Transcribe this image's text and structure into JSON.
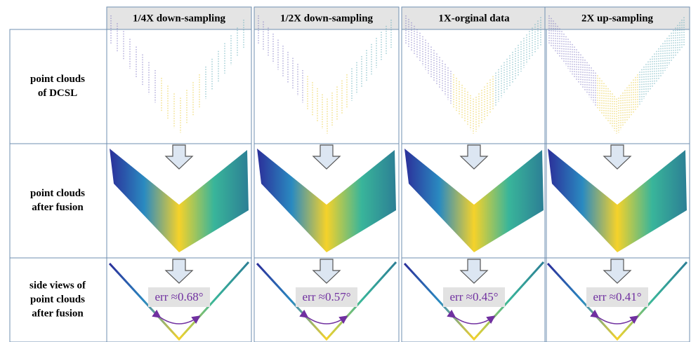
{
  "columns": [
    "1/4X down-sampling",
    "1/2X down-sampling",
    "1X-orginal data",
    "2X up-sampling"
  ],
  "rows": [
    {
      "label": [
        "point clouds",
        "of DCSL"
      ]
    },
    {
      "label": [
        "point clouds",
        "after fusion"
      ]
    },
    {
      "label": [
        "side views of",
        "point clouds",
        "after fusion"
      ],
      "errors": [
        "err ≈0.68°",
        "err ≈0.57°",
        "err ≈0.45°",
        "err ≈0.41°"
      ]
    }
  ]
}
